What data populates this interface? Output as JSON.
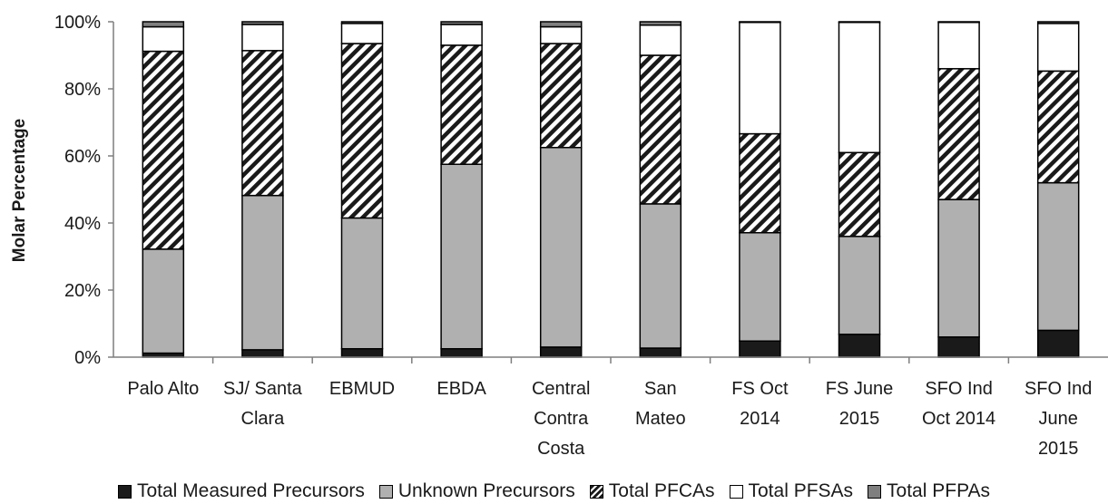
{
  "chart_data": {
    "type": "bar",
    "stacked": true,
    "ylabel": "Molar Percentage",
    "ylim": [
      0,
      100
    ],
    "yticks": [
      "0%",
      "20%",
      "40%",
      "60%",
      "80%",
      "100%"
    ],
    "categories": [
      [
        "Palo Alto"
      ],
      [
        "SJ/ Santa",
        "Clara"
      ],
      [
        "EBMUD"
      ],
      [
        "EBDA"
      ],
      [
        "Central",
        "Contra",
        "Costa"
      ],
      [
        "San",
        "Mateo"
      ],
      [
        "FS Oct",
        "2014"
      ],
      [
        "FS June",
        "2015"
      ],
      [
        "SFO Ind",
        "Oct 2014"
      ],
      [
        "SFO Ind",
        "June",
        "2015"
      ]
    ],
    "series": [
      {
        "name": "Total Measured Precursors",
        "color": "#1a1a1a",
        "pattern": "solid",
        "values": [
          1.2,
          2.2,
          2.5,
          2.5,
          3.0,
          2.7,
          4.8,
          6.8,
          6.0,
          8.0
        ]
      },
      {
        "name": "Unknown Precursors",
        "color": "#b0b0b0",
        "pattern": "solid",
        "values": [
          31.0,
          46.0,
          39.0,
          55.0,
          59.5,
          43.0,
          32.3,
          29.2,
          41.0,
          44.0
        ]
      },
      {
        "name": "Total PFCAs",
        "color": "#1a1a1a",
        "pattern": "diagonal-hatch",
        "values": [
          59.0,
          43.2,
          52.0,
          35.5,
          31.0,
          44.3,
          29.5,
          25.0,
          39.0,
          33.3
        ]
      },
      {
        "name": "Total PFSAs",
        "color": "#ffffff",
        "pattern": "solid",
        "values": [
          7.3,
          7.8,
          6.0,
          6.2,
          5.0,
          9.0,
          33.2,
          38.8,
          13.8,
          14.2
        ]
      },
      {
        "name": "Total PFPAs",
        "color": "#7f7f7f",
        "pattern": "solid",
        "values": [
          1.5,
          0.8,
          0.5,
          0.8,
          1.5,
          1.0,
          0.2,
          0.2,
          0.2,
          0.5
        ]
      }
    ],
    "legend_position": "bottom",
    "grid": false
  }
}
